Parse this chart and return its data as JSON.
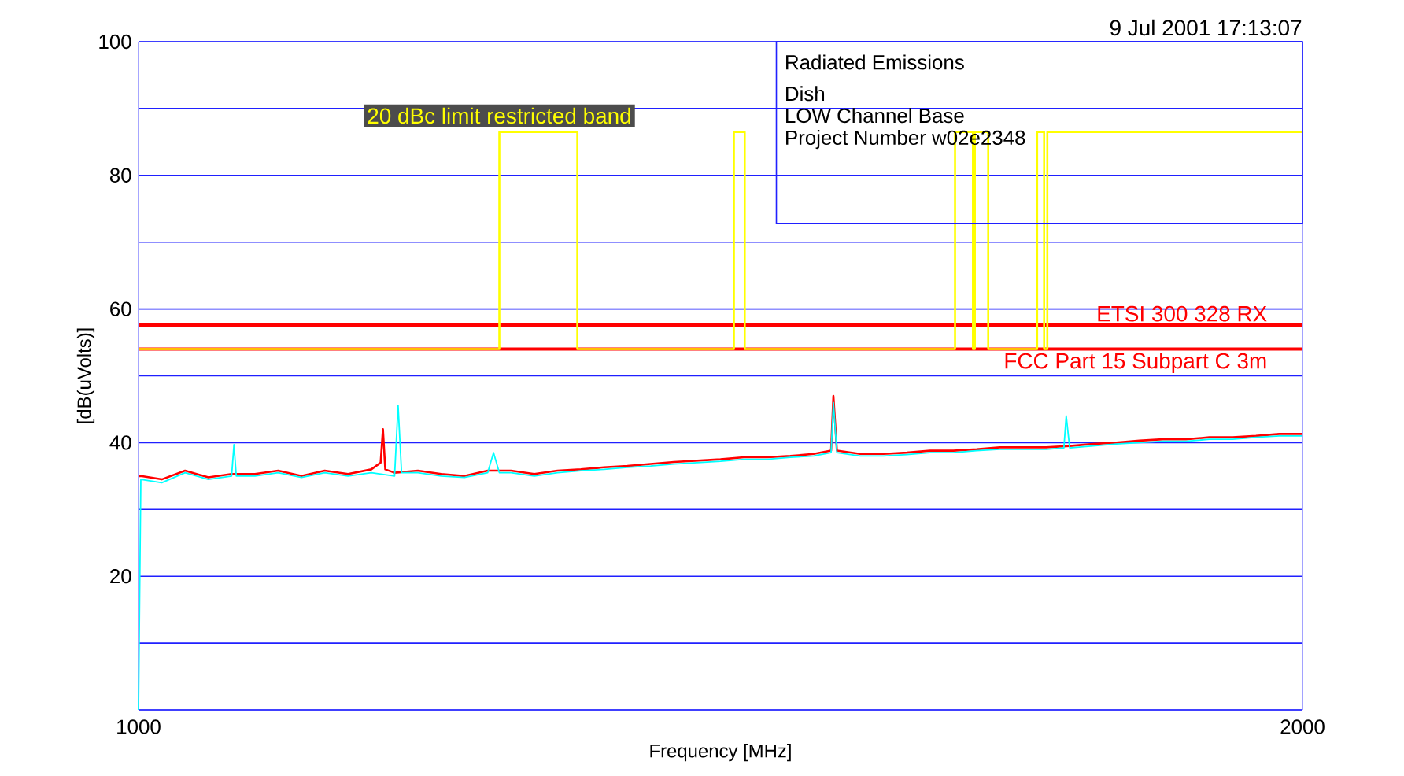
{
  "chart_data": {
    "type": "line",
    "title": "Radiated Emissions",
    "xlabel": "Frequency [MHz]",
    "ylabel": "[dB(uVolts)]",
    "annotations": [
      "9 Jul 2001    17:13:07",
      "Dish",
      "LOW Channel Base",
      "Project Number w02e2348"
    ],
    "xlim": [
      1000,
      2000
    ],
    "ylim": [
      0,
      100
    ],
    "xticks": [
      1000,
      2000
    ],
    "yticks": [
      {
        "value": 0,
        "label": null
      },
      {
        "value": 10,
        "label": null
      },
      20,
      {
        "value": 30,
        "label": null
      },
      40,
      {
        "value": 50,
        "label": null
      },
      60,
      {
        "value": 70,
        "label": null
      },
      80,
      {
        "value": 90,
        "label": null
      },
      100
    ],
    "grid": "y",
    "marker": "none",
    "series": [
      {
        "name": "ETSI 300 328 RX",
        "color": "#ff0000",
        "x": [
          1000,
          2000
        ],
        "values": [
          57.6,
          57.6
        ]
      },
      {
        "name": "FCC Part 15 Subpart C 3m",
        "color": "#ff0000",
        "x": [
          1000,
          2000
        ],
        "values": [
          54,
          54
        ]
      },
      {
        "name": "20 dBc limit restricted band",
        "color": "#ffff00",
        "x": [
          1000,
          1310,
          1310,
          1377,
          1377,
          1511.5,
          1511.5,
          1520.8,
          1520.8,
          1701.5,
          1701.5,
          1716.9,
          1716.9,
          1718.5,
          1718.5,
          1730,
          1730,
          1772,
          1772,
          1778,
          1778,
          1780.8,
          1780.8,
          2000
        ],
        "values": [
          54,
          54,
          86.5,
          86.5,
          54,
          54,
          86.5,
          86.5,
          54,
          54,
          86.5,
          86.5,
          54,
          54,
          86.5,
          86.5,
          54,
          54,
          86.5,
          86.5,
          54,
          54,
          86.5,
          86.5
        ]
      },
      {
        "color": "#ff0000",
        "x": [
          1000,
          1002,
          1020,
          1040,
          1060,
          1080,
          1100,
          1120,
          1140,
          1160,
          1180,
          1200,
          1208,
          1210,
          1212,
          1220,
          1240,
          1260,
          1280,
          1300,
          1320,
          1340,
          1360,
          1380,
          1400,
          1420,
          1440,
          1460,
          1480,
          1500,
          1520,
          1540,
          1560,
          1580,
          1595,
          1597,
          1600,
          1620,
          1640,
          1660,
          1680,
          1700,
          1720,
          1740,
          1760,
          1780,
          1800,
          1820,
          1840,
          1860,
          1880,
          1900,
          1920,
          1940,
          1960,
          1980,
          2000
        ],
        "values": [
          35,
          35,
          34.5,
          35.8,
          34.8,
          35.3,
          35.3,
          35.8,
          35,
          35.8,
          35.3,
          36,
          37,
          42,
          36,
          35.5,
          35.8,
          35.3,
          35,
          35.8,
          35.8,
          35.3,
          35.8,
          36,
          36.3,
          36.5,
          36.8,
          37.1,
          37.3,
          37.5,
          37.8,
          37.8,
          38,
          38.3,
          38.8,
          47,
          38.8,
          38.3,
          38.3,
          38.5,
          38.8,
          38.8,
          39,
          39.3,
          39.3,
          39.3,
          39.5,
          39.8,
          40,
          40.3,
          40.5,
          40.5,
          40.8,
          40.8,
          41,
          41.3,
          41.3
        ]
      },
      {
        "color": "#00ffff",
        "x": [
          1000,
          1002,
          1020,
          1040,
          1060,
          1080,
          1082,
          1084,
          1100,
          1120,
          1140,
          1160,
          1180,
          1200,
          1220,
          1223,
          1226,
          1240,
          1260,
          1280,
          1300,
          1305,
          1310,
          1320,
          1340,
          1360,
          1380,
          1400,
          1420,
          1440,
          1460,
          1480,
          1500,
          1520,
          1540,
          1560,
          1580,
          1595,
          1597,
          1600,
          1620,
          1640,
          1660,
          1680,
          1700,
          1720,
          1740,
          1760,
          1780,
          1795,
          1797,
          1800,
          1820,
          1840,
          1860,
          1880,
          1900,
          1920,
          1940,
          1960,
          1980,
          2000
        ],
        "values": [
          0,
          34.5,
          34,
          35.5,
          34.5,
          35,
          39.7,
          35,
          35,
          35.5,
          34.8,
          35.5,
          35,
          35.5,
          35,
          45.6,
          35.5,
          35.5,
          35,
          34.8,
          35.5,
          38.5,
          35.5,
          35.5,
          35,
          35.5,
          35.8,
          36,
          36.3,
          36.5,
          36.8,
          37,
          37.2,
          37.5,
          37.5,
          37.8,
          38,
          38.5,
          46,
          38.5,
          38,
          38,
          38.2,
          38.5,
          38.5,
          38.8,
          39,
          39,
          39,
          39.2,
          44,
          39.2,
          39.5,
          39.8,
          40,
          40.2,
          40.2,
          40.5,
          40.5,
          40.8,
          41,
          41
        ]
      }
    ]
  }
}
